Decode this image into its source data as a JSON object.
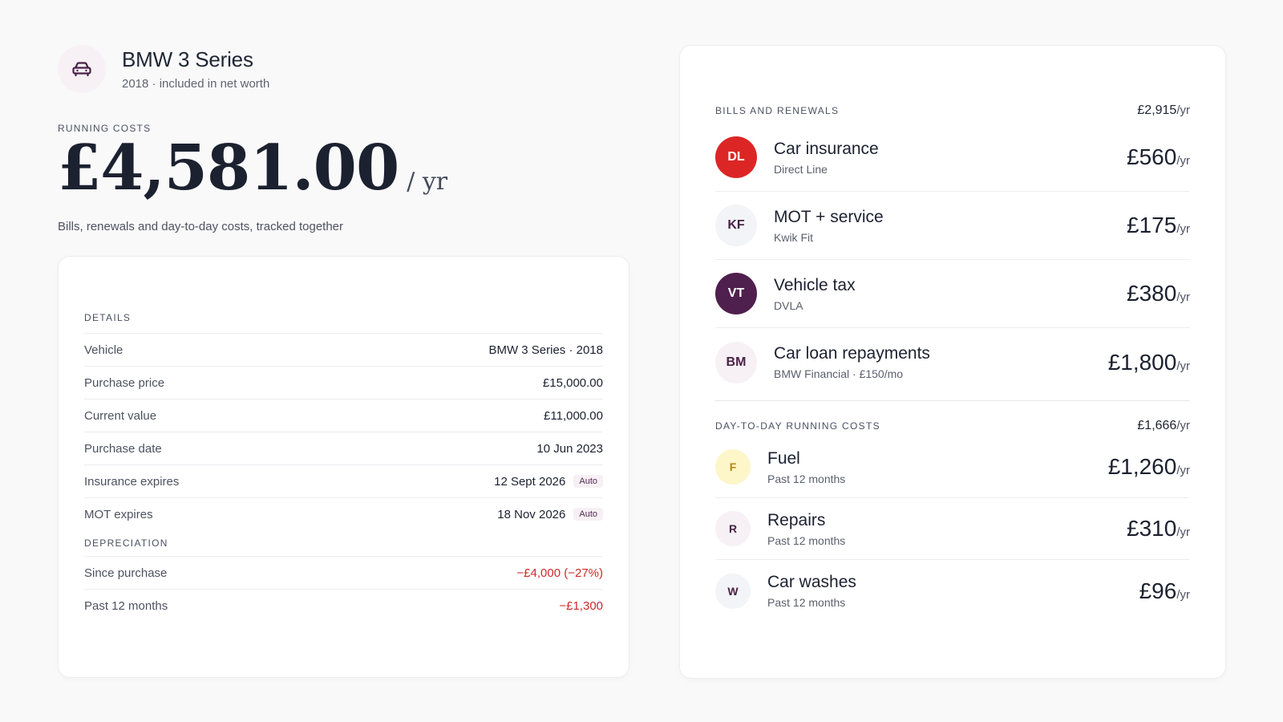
{
  "vehicle": {
    "title": "BMW 3 Series",
    "subtitle": "2018 · included in net worth",
    "icon": "car-icon"
  },
  "running_costs": {
    "label": "RUNNING COSTS",
    "amount": "£4,581.00",
    "unit": "/ yr",
    "description": "Bills, renewals and day-to-day costs, tracked together"
  },
  "details": {
    "label": "DETAILS",
    "rows": [
      {
        "label": "Vehicle",
        "value": "BMW 3 Series · 2018"
      },
      {
        "label": "Purchase price",
        "value": "£15,000.00"
      },
      {
        "label": "Current value",
        "value": "£11,000.00"
      },
      {
        "label": "Purchase date",
        "value": "10 Jun 2023"
      },
      {
        "label": "Insurance expires",
        "value": "12 Sept 2026",
        "badge": "Auto"
      },
      {
        "label": "MOT expires",
        "value": "18 Nov 2026",
        "badge": "Auto"
      }
    ]
  },
  "depreciation": {
    "label": "DEPRECIATION",
    "rows": [
      {
        "label": "Since purchase",
        "value": "−£4,000 (−27%)"
      },
      {
        "label": "Past 12 months",
        "value": "−£1,300"
      }
    ]
  },
  "bills": {
    "title": "BILLS AND RENEWALS",
    "total": "£2,915",
    "per": "/yr",
    "items": [
      {
        "initials": "DL",
        "name": "Car insurance",
        "sub": "Direct Line",
        "amount": "£560",
        "per": "/yr",
        "bg": "#dc2626",
        "fg": "#ffffff"
      },
      {
        "initials": "KF",
        "name": "MOT + service",
        "sub": "Kwik Fit",
        "amount": "£175",
        "per": "/yr",
        "bg": "#f2f4f7",
        "fg": "#4a2147"
      },
      {
        "initials": "VT",
        "name": "Vehicle tax",
        "sub": "DVLA",
        "amount": "£380",
        "per": "/yr",
        "bg": "#4f1f4e",
        "fg": "#ffffff"
      },
      {
        "initials": "BM",
        "name": "Car loan repayments",
        "sub": "BMW Financial · £150/mo",
        "amount": "£1,800",
        "per": "/yr",
        "bg": "#f7f1f5",
        "fg": "#4a2147"
      }
    ]
  },
  "day_to_day": {
    "title": "DAY-TO-DAY RUNNING COSTS",
    "total": "£1,666",
    "per": "/yr",
    "items": [
      {
        "initials": "F",
        "name": "Fuel",
        "sub": "Past 12 months",
        "amount": "£1,260",
        "per": "/yr",
        "bg": "#fdf6c9",
        "fg": "#b7860b"
      },
      {
        "initials": "R",
        "name": "Repairs",
        "sub": "Past 12 months",
        "amount": "£310",
        "per": "/yr",
        "bg": "#f7f1f5",
        "fg": "#4a2147"
      },
      {
        "initials": "W",
        "name": "Car washes",
        "sub": "Past 12 months",
        "amount": "£96",
        "per": "/yr",
        "bg": "#f2f4f7",
        "fg": "#4a2147"
      }
    ]
  }
}
